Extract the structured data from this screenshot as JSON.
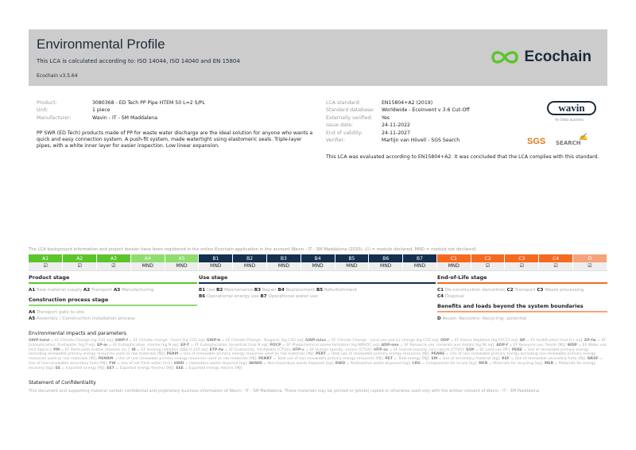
{
  "header": {
    "title": "Environmental Profile",
    "subtitle": "This LCA is calculated according to: ISO 14044, ISO 14040 and EN 15804",
    "version": "Ecochain v3.5.64",
    "logo_text": "Ecochain"
  },
  "product": [
    {
      "label": "Product:",
      "value": "3080368 - ED Tech PP Pipe HTEM 50 L=2 S/PL"
    },
    {
      "label": "Unit:",
      "value": "1 piece"
    },
    {
      "label": "Manufacturer:",
      "value": "Wavin - IT - SM Maddalena"
    }
  ],
  "description": "PP SWR (ED Tech) products made of PP for waste water discharge are the ideal solution for anyone who wants a quick and easy connection system. A push-fit system, made watertight using elastomeric seals. Triple-layer pipes, with a white inner layer for easier inspection. Low linear expansion.",
  "lca": [
    {
      "label": "LCA standard:",
      "value": "EN15804+A2 (2019)"
    },
    {
      "label": "Standard database:",
      "value": "Worldwide - Ecoinvent v 3.6 Cut-Off"
    },
    {
      "label": "Externally verified:",
      "value": "Yes"
    },
    {
      "label": "Issue date:",
      "value": "24-11-2022"
    },
    {
      "label": "End of validity:",
      "value": "24-11-2027"
    },
    {
      "label": "Verifier:",
      "value": "Martijn van Hövell - SGS Search"
    }
  ],
  "logos": {
    "wavin": "wavin",
    "wavin_sub": "An Orbia business",
    "sgs": "SGS",
    "search": "SEARCH",
    "signature": "Mvh"
  },
  "conclusion": "This LCA was evaluated according to EN15804+A2. It was concluded that the LCA complies with this standard.",
  "registration": "The LCA background information and project dossier have been registered in the online Ecochain application in the account Wavin - IT - SM Maddalena (2020). (☑ = module declared, MND = module not declared).",
  "colors": {
    "product": "#5cc42b",
    "construction": "#8fdc6f",
    "use": "#14304f",
    "eol": "#f56a1f",
    "benefits": "#f5a37a"
  },
  "modules": [
    {
      "code": "A1",
      "status": "☑",
      "group": "product"
    },
    {
      "code": "A2",
      "status": "☑",
      "group": "product"
    },
    {
      "code": "A3",
      "status": "☑",
      "group": "product"
    },
    {
      "code": "A4",
      "status": "MND",
      "group": "construction"
    },
    {
      "code": "A5",
      "status": "MND",
      "group": "construction"
    },
    {
      "code": "B1",
      "status": "MND",
      "group": "use"
    },
    {
      "code": "B2",
      "status": "MND",
      "group": "use"
    },
    {
      "code": "B3",
      "status": "MND",
      "group": "use"
    },
    {
      "code": "B4",
      "status": "MND",
      "group": "use"
    },
    {
      "code": "B5",
      "status": "MND",
      "group": "use"
    },
    {
      "code": "B6",
      "status": "MND",
      "group": "use"
    },
    {
      "code": "B7",
      "status": "MND",
      "group": "use"
    },
    {
      "code": "C1",
      "status": "MND",
      "group": "eol"
    },
    {
      "code": "C2",
      "status": "☑",
      "group": "eol"
    },
    {
      "code": "C3",
      "status": "☑",
      "group": "eol"
    },
    {
      "code": "C4",
      "status": "☑",
      "group": "eol"
    },
    {
      "code": "D",
      "status": "☑",
      "group": "benefits"
    }
  ],
  "stages": {
    "product": {
      "title": "Product stage",
      "items": [
        [
          "A1",
          "Raw material supply"
        ],
        [
          "A2",
          "Transport"
        ],
        [
          "A3",
          "Manufacturing"
        ]
      ]
    },
    "construction": {
      "title": "Construction process stage",
      "items": [
        [
          "A4",
          "Transport gate to site"
        ],
        [
          "A5",
          "Assembly / Construction installation process"
        ]
      ]
    },
    "use": {
      "title": "Use stage",
      "items": [
        [
          "B1",
          "Use"
        ],
        [
          "B2",
          "Maintenance"
        ],
        [
          "B3",
          "Repair"
        ],
        [
          "B4",
          "Replacement"
        ],
        [
          "B5",
          "Refurbishment"
        ],
        [
          "B6",
          "Operational energy use"
        ],
        [
          "B7",
          "Operational water use"
        ]
      ]
    },
    "eol": {
      "title": "End-of-Life stage",
      "items": [
        [
          "C1",
          "De-construction demolition"
        ],
        [
          "C2",
          "Transport"
        ],
        [
          "C3",
          "Waste processing"
        ],
        [
          "C4",
          "Disposal"
        ]
      ]
    },
    "benefits": {
      "title": "Benefits and loads beyond the system boundaries",
      "items": [
        [
          "D",
          "Reuse- Recovery- Recycling- potential"
        ]
      ]
    }
  },
  "env": {
    "title": "Environmental impacts and parameters",
    "text": "GWP-total = EF Climate Change [kg CO2 eq]; GWP-f = EF Climate change - Fossil [kg CO2 eq]; GWP-b = EF Climate Change - Biogenic [kg CO2 eq]; GWP-luluc = EF Climate Change - Land use and LU change [kg CO2 eq]; ODP = EF Ozone depletion [kg CFC11 eq]; AP = EF Acidification [mol H+ eq]; EP-fw = EF Eutrophication, freshwater [kg P eq]; EP-m = EF Eutrophication, marine [kg N eq]; EP-T = EF Eutrophication, terrestrial [mol N eq]; POCP = EF Photochemical ozone formation [kg NMVOC eq]; ADP-mm = EF Resource use, minerals and metals [kg Sb eq]; ADP-f = EF Resource use, fossils [MJ]; WDP = EF Water use [m3 depriv.]; PM = EF Particulate matter [disease inc.]; IR = EF Ionising radiation [kBq U-235 eq]; ETP-fw = EF Ecotoxicity, freshwater [CTUe]; HTP-c = EF Human toxicity, cancer [CTUh]; HTP-nc = EF Human toxicity, non-cancer [CTUh]; SQP = EF Land use [Pt]; PERE = Use of renewable primary energy excluding renewable primary energy resources used as raw materials [MJ]; PERM = Use of renewable primary energy resources used as raw materials [MJ]; PERT = Total use of renewable primary energy resources [MJ]; PENRE = Use of non renewable primary energy excluding non-renewable primary energy resources used as raw materials [MJ]; PENRM = Use of non renewable primary energy resources used as raw materials [MJ]; PENRT = Total use of non renewable primary energy resources [MJ]; PET = Total energy [MJ]; SM = Use of secondary material [kg]; RSF = Use of renewable secondary fuels [MJ]; NRSF = Use of non-renewable secondary fuels [MJ]; FW = Use of net fresh water [m3]; HWD = Hazardous waste disposed [kg]; NHWD = Non-hazardous waste disposed [kg]; RWD = Radioactive waste disposed [kg]; CRU = Components for re-use [kg]; MFR = Materials for recycling [kg]; MER = Materials for energy recovery [kg]; EE = Exported energy [MJ]; EET = Exported energy thermic [MJ]; EEE = Exported energy electric [MJ]"
  },
  "confidentiality": {
    "title": "Statement of Confidentiality",
    "text": "This document and supporting material contain confidential and proprietary business information of Wavin - IT - SM Maddalena. These materials may be printed or (photo) copied or otherwise used only with the written consent of Wavin - IT - SM Maddalena."
  }
}
